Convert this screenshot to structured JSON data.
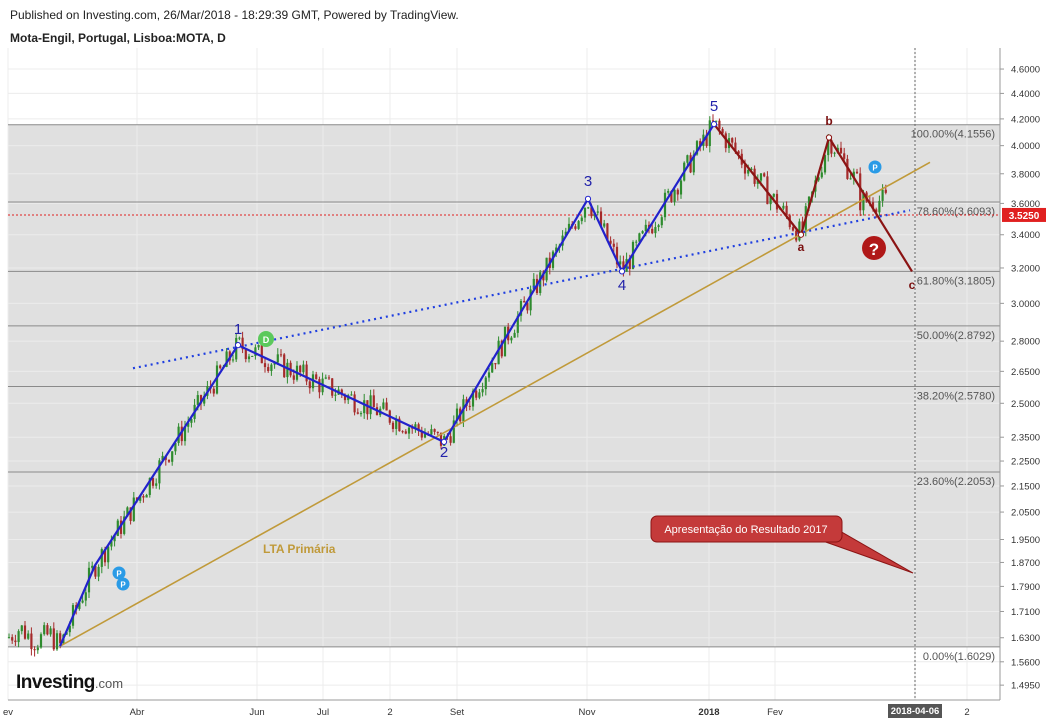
{
  "header": {
    "published": "Published on Investing.com, 26/Mar/2018 - 18:29:39 GMT, Powered by TradingView.",
    "symbol": "Mota-Engil, Portugal, Lisboa:MOTA, D"
  },
  "logo": {
    "brand": "Investing",
    "suffix": ".com"
  },
  "chart_data": {
    "type": "candlestick",
    "y_ticks": [
      "4.6000",
      "4.4000",
      "4.2000",
      "4.0000",
      "3.8000",
      "3.6000",
      "3.4000",
      "3.2000",
      "3.0000",
      "2.8000",
      "2.6500",
      "2.5000",
      "2.3500",
      "2.2500",
      "2.1500",
      "2.0500",
      "1.9500",
      "1.8700",
      "1.7900",
      "1.7100",
      "1.6300",
      "1.5600",
      "1.4950"
    ],
    "y_scale": "log",
    "ylim": [
      1.455,
      4.78
    ],
    "x_ticks": [
      "ev",
      "Abr",
      "Jun",
      "Jul",
      "2",
      "Set",
      "Nov",
      "2018",
      "Fev",
      "2018-04-06",
      "2"
    ],
    "x_ticks_bold": [
      "2018",
      "2018-04-06"
    ],
    "last_price": {
      "label": "3.5250",
      "value": 3.525,
      "color": "#e02020"
    },
    "fib_levels": [
      {
        "label": "100.00%(4.1556)",
        "value": 4.1556
      },
      {
        "label": "78.60%(3.6093)",
        "value": 3.6093
      },
      {
        "label": "61.80%(3.1805)",
        "value": 3.1805
      },
      {
        "label": "50.00%(2.8792)",
        "value": 2.8792
      },
      {
        "label": "38.20%(2.5780)",
        "value": 2.578
      },
      {
        "label": "23.60%(2.2053)",
        "value": 2.2053
      },
      {
        "label": "0.00%(1.6029)",
        "value": 1.6029
      }
    ],
    "waves_impulse": [
      {
        "label": "1",
        "value": 2.78
      },
      {
        "label": "2",
        "value": 2.33
      },
      {
        "label": "3",
        "value": 3.63
      },
      {
        "label": "4",
        "value": 3.18
      },
      {
        "label": "5",
        "value": 4.16
      }
    ],
    "waves_correction": [
      {
        "label": "a",
        "value": 3.4
      },
      {
        "label": "b",
        "value": 4.06
      },
      {
        "label": "c",
        "value": 3.18
      }
    ],
    "annotations": {
      "trendline_label": "LTA Primária",
      "callout": "Apresentação do Resultado 2017",
      "question_mark": "?",
      "dividend_badge": "D",
      "pivot_badge": "P"
    },
    "colors": {
      "impulse": "#2222cc",
      "correction": "#8b1414",
      "trendline": "#c09a3a",
      "dotted_trend": "#1f3fe0",
      "fib_band": "#e0e0e0",
      "candle_up": "#2e8b2e",
      "candle_down": "#a52a2a",
      "callout_fill": "#c43a3a",
      "question_fill": "#b01818",
      "dividend_fill": "#5cc95c",
      "pivot_fill": "#2a9be6"
    }
  }
}
